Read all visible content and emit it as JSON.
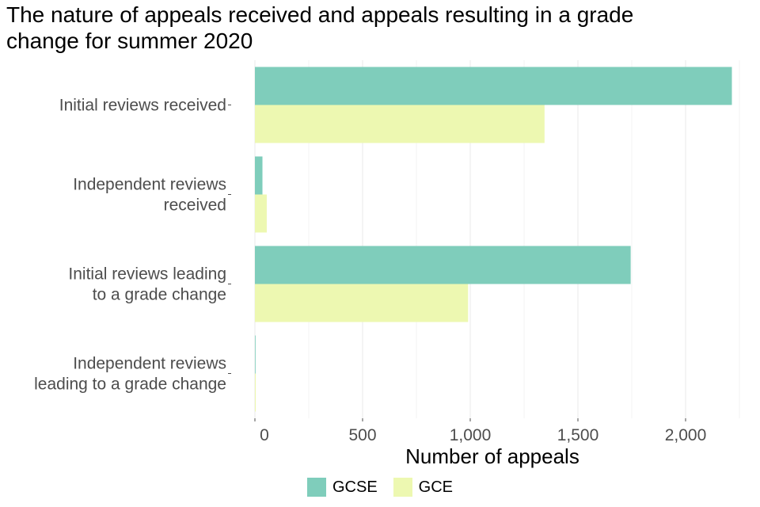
{
  "title_lines": [
    "The nature of appeals received and appeals resulting in a grade",
    "change for summer 2020"
  ],
  "colors": {
    "GCSE": "#7fcdbb",
    "GCE": "#edf8b1",
    "grid": "#ebebeb",
    "tick_text": "#4d4d4d"
  },
  "chart_data": {
    "type": "bar",
    "orientation": "horizontal",
    "title": "The nature of appeals received and appeals resulting in a grade change for summer 2020",
    "categories": [
      [
        "Initial reviews received"
      ],
      [
        "Independent reviews",
        "received"
      ],
      [
        "Initial reviews leading",
        "to a grade change"
      ],
      [
        "Independent reviews",
        "leading to a grade change"
      ]
    ],
    "series": [
      {
        "name": "GCSE",
        "values": [
          2215,
          35,
          1745,
          3
        ]
      },
      {
        "name": "GCE",
        "values": [
          1345,
          55,
          990,
          4
        ]
      }
    ],
    "xlabel": "Number of appeals",
    "ylabel": "",
    "xlim": [
      0,
      2250
    ],
    "xticks": [
      0,
      500,
      1000,
      1500,
      2000
    ],
    "xtick_labels": [
      "0",
      "500",
      "1,000",
      "1,500",
      "2,000"
    ],
    "grid": true,
    "legend_position": "bottom"
  }
}
